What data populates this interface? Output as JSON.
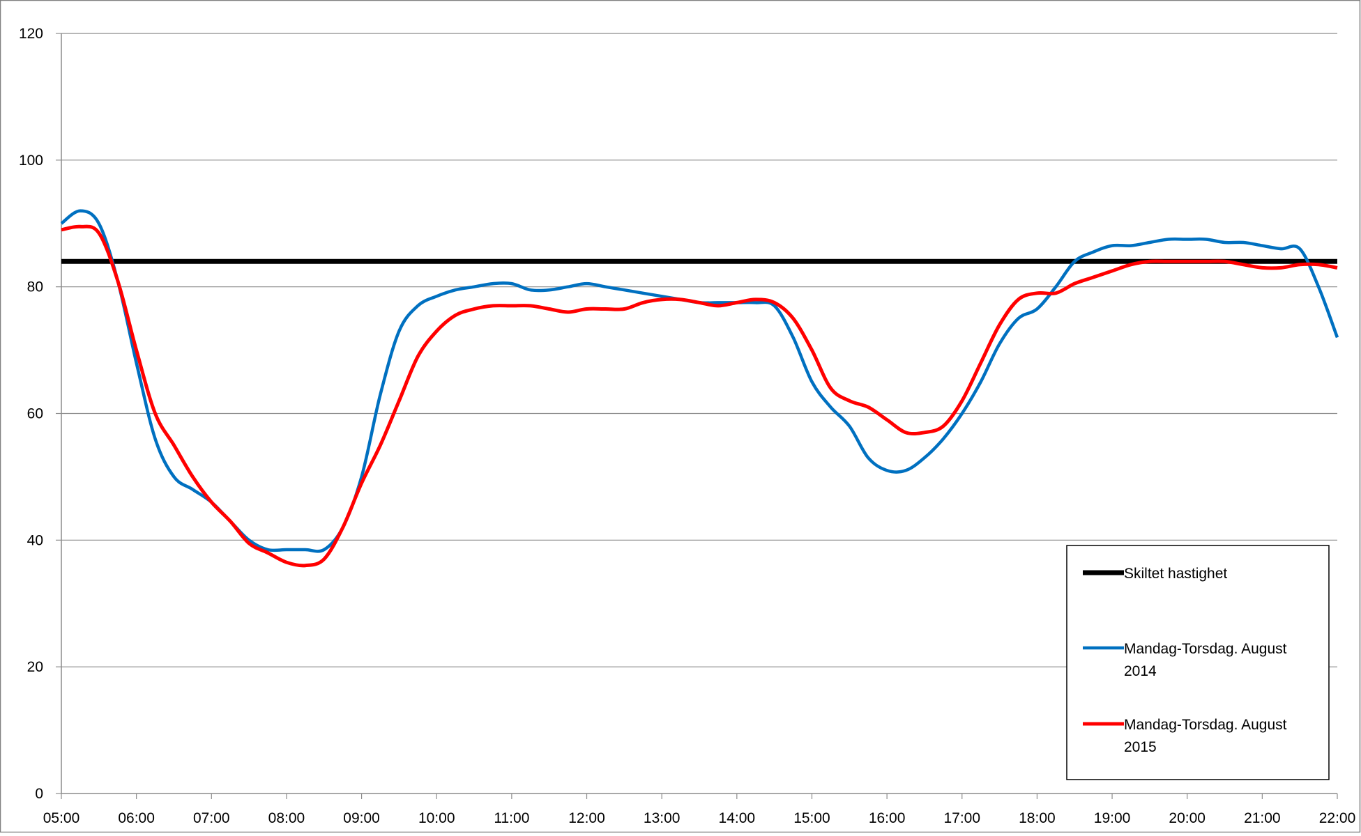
{
  "chart_data": {
    "type": "line",
    "title": "",
    "xlabel": "",
    "ylabel": "",
    "ylim": [
      0,
      120
    ],
    "xlim": [
      5,
      22
    ],
    "grid": true,
    "y_ticks": [
      "0",
      "20",
      "40",
      "60",
      "80",
      "100",
      "120"
    ],
    "x_ticks": [
      "05:00",
      "06:00",
      "07:00",
      "08:00",
      "09:00",
      "10:00",
      "11:00",
      "12:00",
      "13:00",
      "14:00",
      "15:00",
      "16:00",
      "17:00",
      "18:00",
      "19:00",
      "20:00",
      "21:00",
      "22:00"
    ],
    "legend_position": "bottom-right",
    "legend": [
      {
        "label": "Skiltet hastighet",
        "series": 0
      },
      {
        "label": "Mandag-Torsdag. August 2014",
        "series": 1
      },
      {
        "label": "Mandag-Torsdag. August 2015",
        "series": 2
      }
    ],
    "series": [
      {
        "name": "Skiltet hastighet",
        "color": "#000000",
        "x": [
          "05:00",
          "22:00"
        ],
        "values": [
          84,
          84
        ]
      },
      {
        "name": "Mandag-Torsdag. August 2014",
        "color": "#0070C0",
        "x": [
          "05:00",
          "05:15",
          "05:30",
          "05:45",
          "06:00",
          "06:15",
          "06:30",
          "06:45",
          "07:00",
          "07:15",
          "07:30",
          "07:45",
          "08:00",
          "08:15",
          "08:30",
          "08:45",
          "09:00",
          "09:15",
          "09:30",
          "09:45",
          "10:00",
          "10:15",
          "10:30",
          "10:45",
          "11:00",
          "11:15",
          "11:30",
          "11:45",
          "12:00",
          "12:15",
          "12:30",
          "12:45",
          "13:00",
          "13:15",
          "13:30",
          "13:45",
          "14:00",
          "14:15",
          "14:30",
          "14:45",
          "15:00",
          "15:15",
          "15:30",
          "15:45",
          "16:00",
          "16:15",
          "16:30",
          "16:45",
          "17:00",
          "17:15",
          "17:30",
          "17:45",
          "18:00",
          "18:15",
          "18:30",
          "18:45",
          "19:00",
          "19:15",
          "19:30",
          "19:45",
          "20:00",
          "20:15",
          "20:30",
          "20:45",
          "21:00",
          "21:15",
          "21:30",
          "21:45",
          "22:00"
        ],
        "values": [
          90,
          92,
          90,
          81,
          68,
          56,
          50,
          48,
          46,
          43,
          40,
          38.5,
          38.5,
          38.5,
          38.5,
          42,
          50,
          63,
          73,
          77,
          78.5,
          79.5,
          80,
          80.5,
          80.5,
          79.5,
          79.5,
          80,
          80.5,
          80,
          79.5,
          79,
          78.5,
          78,
          77.5,
          77.5,
          77.5,
          77.5,
          77,
          72,
          65,
          61,
          58,
          53,
          51,
          51,
          53,
          56,
          60,
          65,
          71,
          75,
          76.5,
          80,
          84,
          85.5,
          86.5,
          86.5,
          87,
          87.5,
          87.5,
          87.5,
          87,
          87,
          86.5,
          86,
          86,
          80,
          72
        ]
      },
      {
        "name": "Mandag-Torsdag. August 2015",
        "color": "#FF0000",
        "x": [
          "05:00",
          "05:15",
          "05:30",
          "05:45",
          "06:00",
          "06:15",
          "06:30",
          "06:45",
          "07:00",
          "07:15",
          "07:30",
          "07:45",
          "08:00",
          "08:15",
          "08:30",
          "08:45",
          "09:00",
          "09:15",
          "09:30",
          "09:45",
          "10:00",
          "10:15",
          "10:30",
          "10:45",
          "11:00",
          "11:15",
          "11:30",
          "11:45",
          "12:00",
          "12:15",
          "12:30",
          "12:45",
          "13:00",
          "13:15",
          "13:30",
          "13:45",
          "14:00",
          "14:15",
          "14:30",
          "14:45",
          "15:00",
          "15:15",
          "15:30",
          "15:45",
          "16:00",
          "16:15",
          "16:30",
          "16:45",
          "17:00",
          "17:15",
          "17:30",
          "17:45",
          "18:00",
          "18:15",
          "18:30",
          "18:45",
          "19:00",
          "19:15",
          "19:30",
          "19:45",
          "20:00",
          "20:15",
          "20:30",
          "20:45",
          "21:00",
          "21:15",
          "21:30",
          "21:45",
          "22:00"
        ],
        "values": [
          89,
          89.5,
          88.5,
          81,
          70,
          60,
          55,
          50,
          46,
          43,
          39.5,
          38,
          36.5,
          36,
          37,
          42,
          49,
          55,
          62,
          69,
          73,
          75.5,
          76.5,
          77,
          77,
          77,
          76.5,
          76,
          76.5,
          76.5,
          76.5,
          77.5,
          78,
          78,
          77.5,
          77,
          77.5,
          78,
          77.5,
          75,
          70,
          64,
          62,
          61,
          59,
          57,
          57,
          58,
          62,
          68,
          74,
          78,
          79,
          79,
          80.5,
          81.5,
          82.5,
          83.5,
          84,
          84,
          84,
          84,
          84,
          83.5,
          83,
          83,
          83.5,
          83.5,
          83
        ]
      }
    ]
  }
}
